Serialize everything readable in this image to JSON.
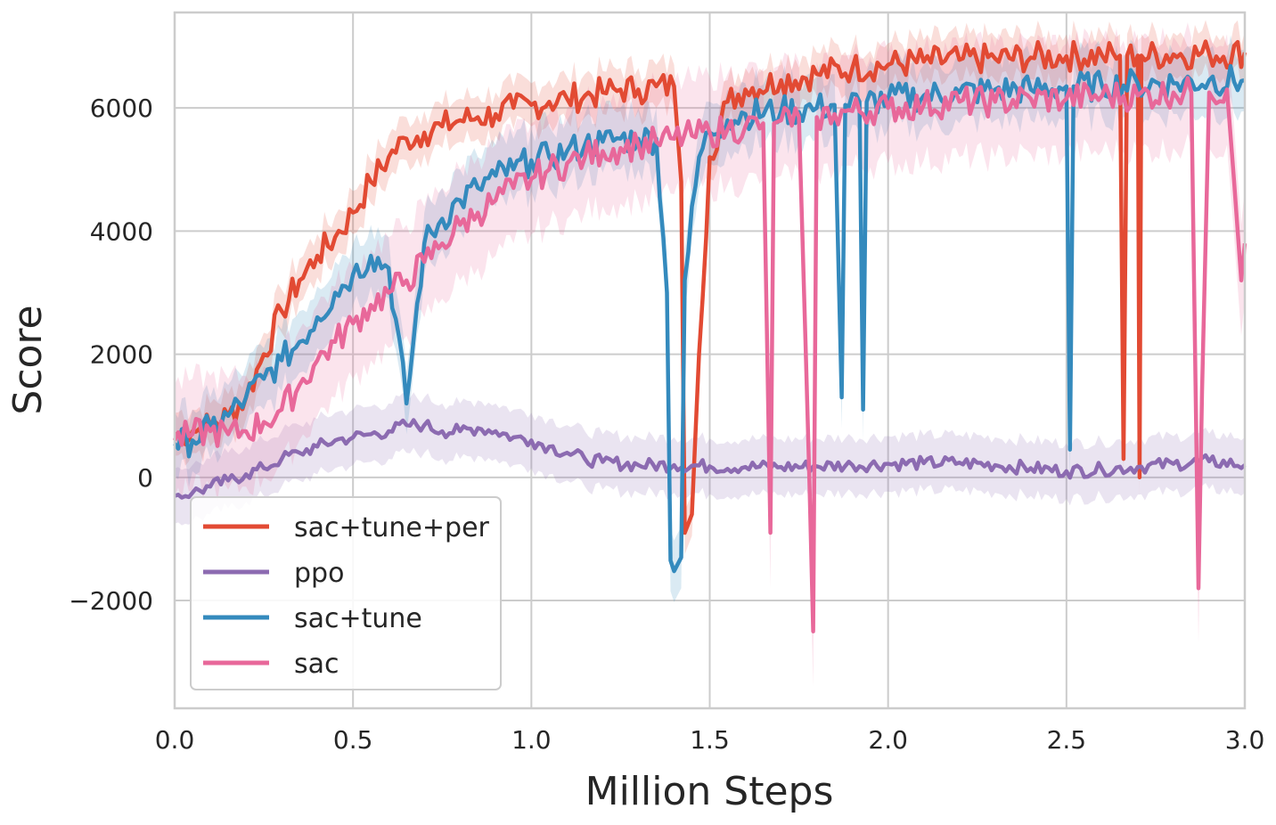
{
  "chart_data": {
    "type": "line",
    "title": "",
    "xlabel": "Million Steps",
    "ylabel": "Score",
    "xlim": [
      0.0,
      3.0
    ],
    "ylim": [
      -3750,
      7550
    ],
    "x_ticks": [
      "0.0",
      "0.5",
      "1.0",
      "1.5",
      "2.0",
      "2.5",
      "3.0"
    ],
    "y_ticks": [
      "−2000",
      "0",
      "2000",
      "4000",
      "6000"
    ],
    "x_tick_values": [
      0.0,
      0.5,
      1.0,
      1.5,
      2.0,
      2.5,
      3.0
    ],
    "y_tick_values": [
      -2000,
      0,
      2000,
      4000,
      6000
    ],
    "grid": true,
    "legend_position": "lower-left",
    "shaded_bands": true,
    "series": [
      {
        "name": "sac+tune+per",
        "color": "#e24a33",
        "points": [
          [
            0.0,
            700
          ],
          [
            0.05,
            750
          ],
          [
            0.1,
            850
          ],
          [
            0.15,
            1000
          ],
          [
            0.2,
            1300
          ],
          [
            0.25,
            2000
          ],
          [
            0.3,
            2700
          ],
          [
            0.35,
            3200
          ],
          [
            0.4,
            3600
          ],
          [
            0.45,
            3900
          ],
          [
            0.5,
            4300
          ],
          [
            0.55,
            4800
          ],
          [
            0.6,
            5200
          ],
          [
            0.65,
            5500
          ],
          [
            0.7,
            5600
          ],
          [
            0.75,
            5700
          ],
          [
            0.8,
            5800
          ],
          [
            0.85,
            5850
          ],
          [
            0.9,
            5900
          ],
          [
            0.95,
            6000
          ],
          [
            1.0,
            6050
          ],
          [
            1.05,
            6100
          ],
          [
            1.1,
            6150
          ],
          [
            1.15,
            6200
          ],
          [
            1.2,
            6250
          ],
          [
            1.25,
            6300
          ],
          [
            1.3,
            6300
          ],
          [
            1.35,
            6350
          ],
          [
            1.4,
            6350
          ],
          [
            1.42,
            4800
          ],
          [
            1.43,
            -900
          ],
          [
            1.45,
            -600
          ],
          [
            1.47,
            2000
          ],
          [
            1.5,
            5200
          ],
          [
            1.55,
            6100
          ],
          [
            1.6,
            6300
          ],
          [
            1.7,
            6450
          ],
          [
            1.8,
            6550
          ],
          [
            1.9,
            6650
          ],
          [
            2.0,
            6700
          ],
          [
            2.1,
            6750
          ],
          [
            2.2,
            6780
          ],
          [
            2.3,
            6800
          ],
          [
            2.4,
            6820
          ],
          [
            2.5,
            6840
          ],
          [
            2.6,
            6850
          ],
          [
            2.65,
            6850
          ],
          [
            2.66,
            300
          ],
          [
            2.67,
            6850
          ],
          [
            2.7,
            6850
          ],
          [
            2.705,
            0
          ],
          [
            2.71,
            6850
          ],
          [
            2.8,
            6870
          ],
          [
            2.9,
            6880
          ],
          [
            3.0,
            6900
          ]
        ],
        "band": 350
      },
      {
        "name": "ppo",
        "color": "#8c6bb1",
        "points": [
          [
            0.0,
            -300
          ],
          [
            0.05,
            -250
          ],
          [
            0.1,
            -150
          ],
          [
            0.15,
            -50
          ],
          [
            0.2,
            50
          ],
          [
            0.25,
            150
          ],
          [
            0.3,
            300
          ],
          [
            0.35,
            400
          ],
          [
            0.4,
            500
          ],
          [
            0.45,
            600
          ],
          [
            0.5,
            650
          ],
          [
            0.55,
            700
          ],
          [
            0.6,
            750
          ],
          [
            0.65,
            850
          ],
          [
            0.7,
            850
          ],
          [
            0.75,
            750
          ],
          [
            0.8,
            750
          ],
          [
            0.85,
            800
          ],
          [
            0.9,
            750
          ],
          [
            0.95,
            650
          ],
          [
            1.0,
            600
          ],
          [
            1.05,
            500
          ],
          [
            1.1,
            400
          ],
          [
            1.15,
            300
          ],
          [
            1.2,
            250
          ],
          [
            1.3,
            200
          ],
          [
            1.4,
            200
          ],
          [
            1.5,
            180
          ],
          [
            1.6,
            170
          ],
          [
            1.7,
            170
          ],
          [
            1.8,
            180
          ],
          [
            1.9,
            200
          ],
          [
            2.0,
            220
          ],
          [
            2.1,
            230
          ],
          [
            2.2,
            240
          ],
          [
            2.3,
            200
          ],
          [
            2.4,
            150
          ],
          [
            2.5,
            100
          ],
          [
            2.6,
            130
          ],
          [
            2.7,
            170
          ],
          [
            2.8,
            220
          ],
          [
            2.9,
            260
          ],
          [
            3.0,
            200
          ]
        ],
        "band": 450
      },
      {
        "name": "sac+tune",
        "color": "#348abd",
        "points": [
          [
            0.0,
            550
          ],
          [
            0.05,
            600
          ],
          [
            0.1,
            800
          ],
          [
            0.15,
            1000
          ],
          [
            0.2,
            1300
          ],
          [
            0.25,
            1600
          ],
          [
            0.3,
            1900
          ],
          [
            0.35,
            2200
          ],
          [
            0.4,
            2600
          ],
          [
            0.45,
            3000
          ],
          [
            0.5,
            3300
          ],
          [
            0.55,
            3600
          ],
          [
            0.6,
            3400
          ],
          [
            0.65,
            1200
          ],
          [
            0.7,
            3800
          ],
          [
            0.75,
            4200
          ],
          [
            0.8,
            4500
          ],
          [
            0.85,
            4700
          ],
          [
            0.9,
            4900
          ],
          [
            0.95,
            5000
          ],
          [
            1.0,
            5150
          ],
          [
            1.05,
            5200
          ],
          [
            1.1,
            5300
          ],
          [
            1.15,
            5400
          ],
          [
            1.2,
            5450
          ],
          [
            1.25,
            5500
          ],
          [
            1.3,
            5500
          ],
          [
            1.35,
            5500
          ],
          [
            1.38,
            3000
          ],
          [
            1.39,
            -1350
          ],
          [
            1.42,
            -1300
          ],
          [
            1.43,
            3200
          ],
          [
            1.47,
            5200
          ],
          [
            1.5,
            5600
          ],
          [
            1.55,
            5800
          ],
          [
            1.6,
            5900
          ],
          [
            1.7,
            5950
          ],
          [
            1.8,
            6000
          ],
          [
            1.85,
            6050
          ],
          [
            1.87,
            1300
          ],
          [
            1.88,
            6050
          ],
          [
            1.92,
            6100
          ],
          [
            1.93,
            1100
          ],
          [
            1.94,
            6100
          ],
          [
            2.0,
            6150
          ],
          [
            2.1,
            6200
          ],
          [
            2.2,
            6250
          ],
          [
            2.3,
            6300
          ],
          [
            2.4,
            6300
          ],
          [
            2.5,
            6350
          ],
          [
            2.51,
            450
          ],
          [
            2.52,
            6350
          ],
          [
            2.6,
            6350
          ],
          [
            2.7,
            6400
          ],
          [
            2.8,
            6400
          ],
          [
            2.9,
            6450
          ],
          [
            3.0,
            6450
          ]
        ],
        "band": 500
      },
      {
        "name": "sac",
        "color": "#e8689a",
        "points": [
          [
            0.0,
            600
          ],
          [
            0.05,
            700
          ],
          [
            0.1,
            750
          ],
          [
            0.15,
            700
          ],
          [
            0.2,
            750
          ],
          [
            0.25,
            900
          ],
          [
            0.3,
            1100
          ],
          [
            0.35,
            1500
          ],
          [
            0.4,
            1900
          ],
          [
            0.45,
            2200
          ],
          [
            0.5,
            2500
          ],
          [
            0.55,
            2800
          ],
          [
            0.6,
            3000
          ],
          [
            0.65,
            3200
          ],
          [
            0.7,
            3500
          ],
          [
            0.75,
            3800
          ],
          [
            0.8,
            4100
          ],
          [
            0.85,
            4300
          ],
          [
            0.9,
            4500
          ],
          [
            0.95,
            4700
          ],
          [
            1.0,
            4850
          ],
          [
            1.05,
            5000
          ],
          [
            1.1,
            5100
          ],
          [
            1.15,
            5200
          ],
          [
            1.2,
            5300
          ],
          [
            1.25,
            5350
          ],
          [
            1.3,
            5400
          ],
          [
            1.35,
            5450
          ],
          [
            1.4,
            5500
          ],
          [
            1.45,
            5550
          ],
          [
            1.5,
            5600
          ],
          [
            1.55,
            5650
          ],
          [
            1.6,
            5700
          ],
          [
            1.65,
            5750
          ],
          [
            1.67,
            -900
          ],
          [
            1.68,
            5750
          ],
          [
            1.7,
            5800
          ],
          [
            1.75,
            5850
          ],
          [
            1.79,
            -2500
          ],
          [
            1.8,
            5850
          ],
          [
            1.85,
            5900
          ],
          [
            1.9,
            5950
          ],
          [
            2.0,
            6000
          ],
          [
            2.1,
            6050
          ],
          [
            2.2,
            6100
          ],
          [
            2.3,
            6100
          ],
          [
            2.4,
            6150
          ],
          [
            2.5,
            6150
          ],
          [
            2.6,
            6200
          ],
          [
            2.7,
            6200
          ],
          [
            2.8,
            6250
          ],
          [
            2.85,
            6250
          ],
          [
            2.87,
            -1800
          ],
          [
            2.88,
            1400
          ],
          [
            2.9,
            6250
          ],
          [
            2.95,
            6300
          ],
          [
            2.97,
            4800
          ],
          [
            2.99,
            3200
          ],
          [
            3.0,
            3800
          ]
        ],
        "band": 900
      }
    ]
  },
  "legend": {
    "entries": [
      "sac+tune+per",
      "ppo",
      "sac+tune",
      "sac"
    ]
  }
}
